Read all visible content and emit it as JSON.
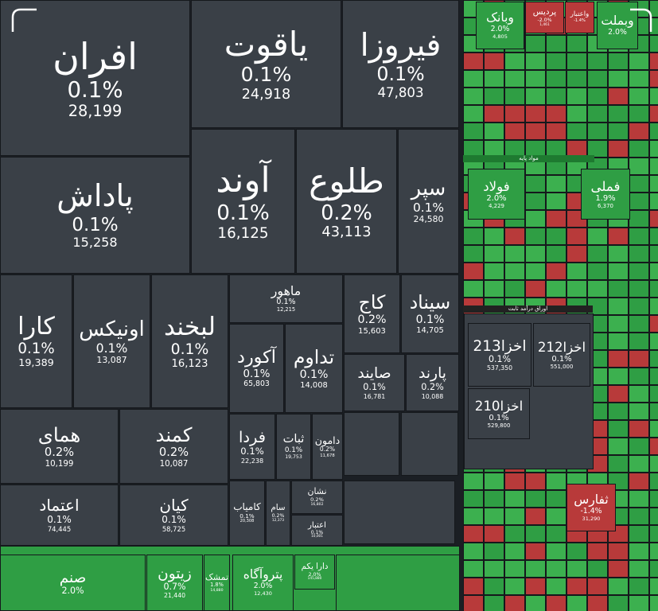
{
  "tiles": [
    {
      "name": "افران",
      "change": "0.1%",
      "volume": "28,199"
    },
    {
      "name": "یاقوت",
      "change": "0.1%",
      "volume": "24,918"
    },
    {
      "name": "فیروزا",
      "change": "0.1%",
      "volume": "47,803"
    },
    {
      "name": "پاداش",
      "change": "0.1%",
      "volume": "15,258"
    },
    {
      "name": "آوند",
      "change": "0.1%",
      "volume": "16,125"
    },
    {
      "name": "طلوع",
      "change": "0.2%",
      "volume": "43,113"
    },
    {
      "name": "سپر",
      "change": "0.1%",
      "volume": "24,580"
    },
    {
      "name": "کارا",
      "change": "0.1%",
      "volume": "19,389"
    },
    {
      "name": "اونیکس",
      "change": "0.1%",
      "volume": "13,087"
    },
    {
      "name": "لبخند",
      "change": "0.1%",
      "volume": "16,123"
    },
    {
      "name": "ماهور",
      "change": "0.1%",
      "volume": "12,215"
    },
    {
      "name": "کاج",
      "change": "0.2%",
      "volume": "15,603"
    },
    {
      "name": "سیناد",
      "change": "0.1%",
      "volume": "14,705"
    },
    {
      "name": "آکورد",
      "change": "0.1%",
      "volume": "65,803"
    },
    {
      "name": "تداوم",
      "change": "0.1%",
      "volume": "14,008"
    },
    {
      "name": "صایند",
      "change": "0.1%",
      "volume": "16,781"
    },
    {
      "name": "پارند",
      "change": "0.2%",
      "volume": "10,088"
    },
    {
      "name": "همای",
      "change": "0.2%",
      "volume": "10,199"
    },
    {
      "name": "کمند",
      "change": "0.2%",
      "volume": "10,087"
    },
    {
      "name": "اعتماد",
      "change": "0.1%",
      "volume": "74,445"
    },
    {
      "name": "کیان",
      "change": "0.1%",
      "volume": "58,725"
    },
    {
      "name": "فردا",
      "change": "0.1%",
      "volume": "22,238"
    },
    {
      "name": "ثبات",
      "change": "0.1%",
      "volume": "19,753"
    },
    {
      "name": "دامون",
      "change": "0.2%",
      "volume": "11,678"
    },
    {
      "name": "کامیاب",
      "change": "0.1%",
      "volume": "20,308"
    },
    {
      "name": "سام",
      "change": "0.2%",
      "volume": "12,373"
    },
    {
      "name": "نشان",
      "change": "0.2%",
      "volume": "16,802"
    },
    {
      "name": "اعتبار",
      "change": "0.1%",
      "volume": "10,001"
    },
    {
      "name": "صنم",
      "change": "2.0%",
      "volume": ""
    },
    {
      "name": "زیتون",
      "change": "0.7%",
      "volume": "21,440"
    },
    {
      "name": "تمشک",
      "change": "1.8%",
      "volume": "14,880"
    },
    {
      "name": "پتروآگاه",
      "change": "2.0%",
      "volume": "12,430"
    },
    {
      "name": "دارا یکم",
      "change": "2.0%",
      "volume": "145,880"
    },
    {
      "name": "وبانک",
      "change": "2.0%",
      "volume": "4,805"
    },
    {
      "name": "پردیس",
      "change": "-2.0%",
      "volume": "1,461"
    },
    {
      "name": "واعتبار",
      "change": "-1.4%",
      "volume": ""
    },
    {
      "name": "وبملت",
      "change": "2.0%",
      "volume": ""
    },
    {
      "name": "فولاد",
      "change": "2.0%",
      "volume": "4,229"
    },
    {
      "name": "فملی",
      "change": "1.9%",
      "volume": "6,370"
    },
    {
      "name": "اخزا213",
      "change": "0.1%",
      "volume": "537,350"
    },
    {
      "name": "اخزا212",
      "change": "0.1%",
      "volume": "551,000"
    },
    {
      "name": "اخزا210",
      "change": "0.1%",
      "volume": "529,800"
    },
    {
      "name": "ثفارس",
      "change": "-1.4%",
      "volume": "31,290"
    }
  ],
  "sections": [
    "مواد پایه",
    "اوراق درآمد ثابت"
  ]
}
